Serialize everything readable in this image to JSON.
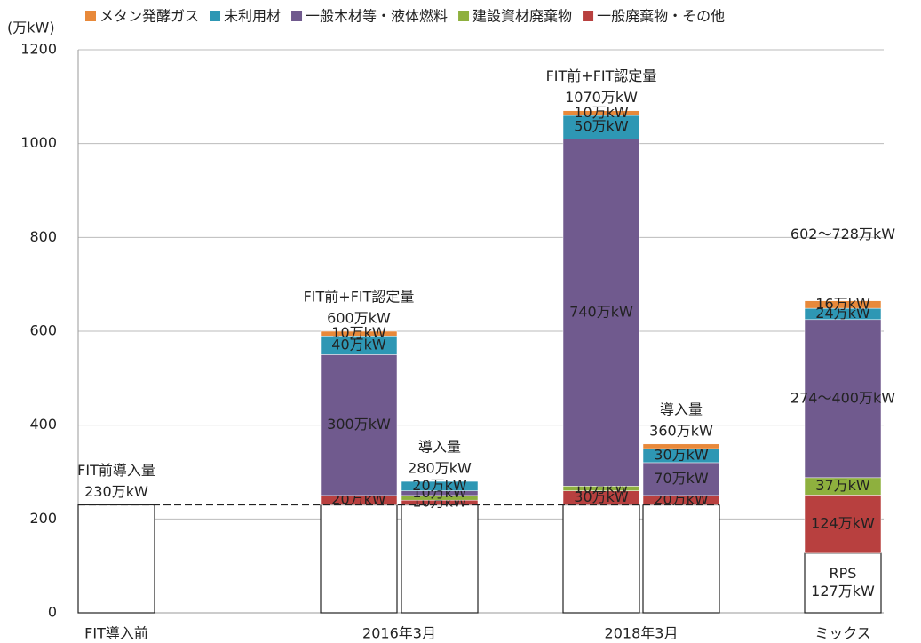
{
  "chart_data": {
    "type": "stacked_bar",
    "y_axis_label": "(万kW)",
    "categories": [
      "FIT導入前",
      "2016年3月",
      null,
      "2018年3月",
      null,
      "ミックス"
    ],
    "base": [
      230,
      230,
      230,
      230,
      230,
      127
    ],
    "base_color": "#ffffff",
    "base_labels": [
      null,
      null,
      null,
      null,
      null,
      [
        "RPS",
        "127万kW"
      ]
    ],
    "top_labels": [
      [
        "FIT前導入量",
        "230万kW"
      ],
      [
        "FIT前+FIT認定量",
        "600万kW"
      ],
      [
        "導入量",
        "280万kW"
      ],
      [
        "FIT前+FIT認定量",
        "1070万kW"
      ],
      [
        "導入量",
        "360万kW"
      ],
      [
        "602～728万kW"
      ]
    ],
    "reference_line": 230,
    "series": [
      {
        "name": "メタン発酵ガス",
        "color": "#e8893a",
        "values": [
          null,
          10,
          null,
          10,
          10,
          16
        ],
        "value_labels": [
          null,
          "10万kW",
          null,
          "10万kW",
          null,
          "16万kW"
        ]
      },
      {
        "name": "未利用材",
        "color": "#2e97b4",
        "values": [
          null,
          40,
          20,
          50,
          30,
          24
        ],
        "value_labels": [
          null,
          "40万kW",
          "20万kW",
          "50万kW",
          "30万kW",
          "24万kW"
        ]
      },
      {
        "name": "一般木材等・液体燃料",
        "color": "#705a8e",
        "values": [
          null,
          300,
          10,
          740,
          70,
          337
        ],
        "value_labels": [
          null,
          "300万kW",
          "10万kW",
          "740万kW",
          "70万kW",
          "274～400万kW"
        ]
      },
      {
        "name": "建設資材廃棄物",
        "color": "#8eb03e",
        "values": [
          null,
          null,
          10,
          10,
          null,
          37
        ],
        "value_labels": [
          null,
          null,
          null,
          "10万kW",
          null,
          "37万kW"
        ]
      },
      {
        "name": "一般廃棄物・その他",
        "color": "#b8403f",
        "values": [
          null,
          20,
          10,
          30,
          20,
          124
        ],
        "value_labels": [
          null,
          "20万kW",
          "10万kW",
          "30万kW",
          "20万kW",
          "124万kW"
        ]
      }
    ],
    "ylim": [
      0,
      1200
    ],
    "yticks": [
      0,
      200,
      400,
      600,
      800,
      1000,
      1200
    ],
    "grid": true
  }
}
